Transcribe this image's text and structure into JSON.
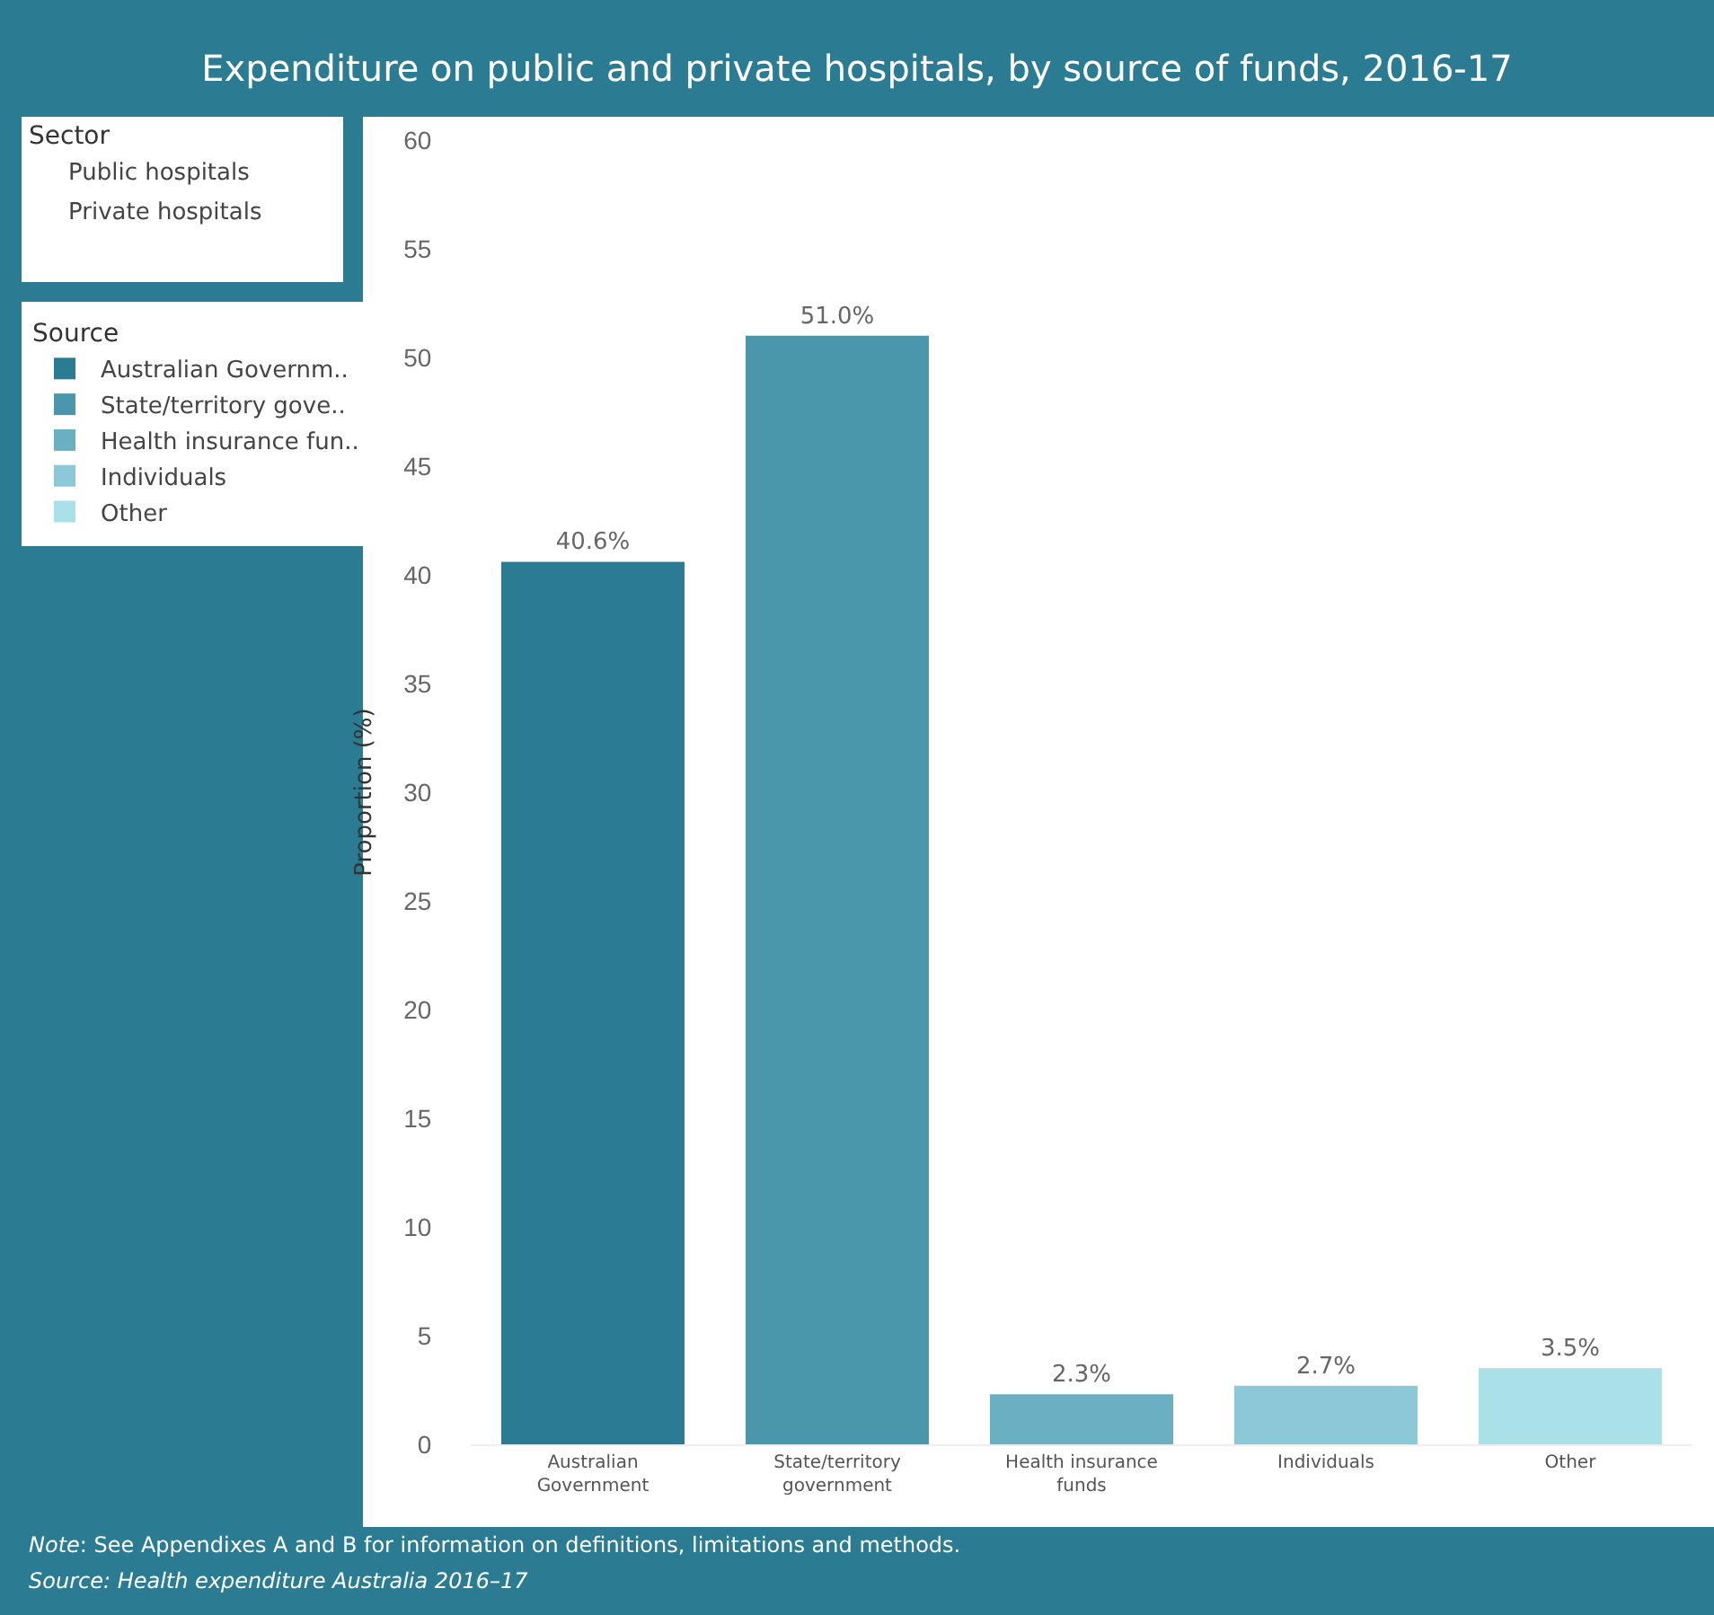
{
  "chart_data": {
    "type": "bar",
    "title": "Expenditure on public and private hospitals, by source of funds, 2016-17",
    "categories": [
      "Australian Government",
      "State/territory government",
      "Health insurance funds",
      "Individuals",
      "Other"
    ],
    "ylabel": "Proportion (%)",
    "legend_title": "Source",
    "legend": "left",
    "ylim": [
      0,
      60
    ],
    "yticks": [
      0,
      5,
      10,
      15,
      20,
      25,
      30,
      35,
      40,
      45,
      50,
      55,
      60
    ],
    "grid": false,
    "series": [
      {
        "name": "Australian Governm..",
        "color": "#2a7b93",
        "values": [
          40.6,
          null,
          null,
          null,
          null
        ],
        "value_labels": [
          "40.6%",
          null,
          null,
          null,
          null
        ]
      },
      {
        "name": "State/territory gove..",
        "color": "#4a96ab",
        "values": [
          null,
          51.0,
          null,
          null,
          null
        ],
        "value_labels": [
          null,
          "51.0%",
          null,
          null,
          null
        ]
      },
      {
        "name": "Health insurance fun..",
        "color": "#6aafc2",
        "values": [
          null,
          null,
          2.3,
          null,
          null
        ],
        "value_labels": [
          null,
          null,
          "2.3%",
          null,
          null
        ]
      },
      {
        "name": "Individuals",
        "color": "#8cc9d8",
        "values": [
          null,
          null,
          null,
          2.7,
          null
        ],
        "value_labels": [
          null,
          null,
          null,
          "2.7%",
          null
        ]
      },
      {
        "name": "Other",
        "color": "#aae0e8",
        "values": [
          null,
          null,
          null,
          null,
          3.5
        ],
        "value_labels": [
          null,
          null,
          null,
          null,
          "3.5%"
        ]
      }
    ],
    "annotations": [
      "Sector",
      "Public hospitals",
      "Private hospitals",
      "Note: See Appendixes A and B for information on definitions, limitations and methods.",
      "Source: Health expenditure Australia 2016–17"
    ]
  }
}
